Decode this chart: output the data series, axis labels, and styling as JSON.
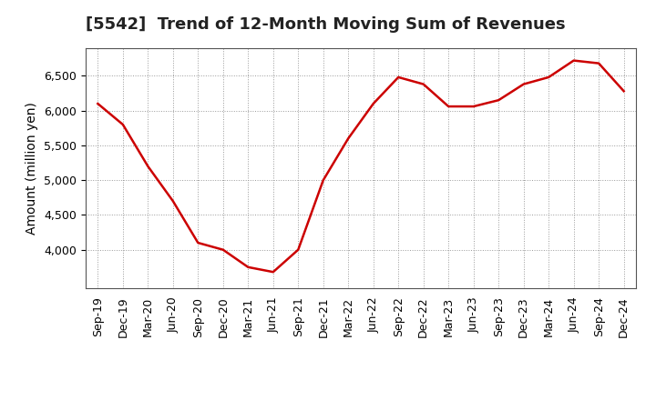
{
  "title": "[5542]  Trend of 12-Month Moving Sum of Revenues",
  "ylabel": "Amount (million yen)",
  "line_color": "#cc0000",
  "background_color": "#ffffff",
  "grid_color": "#999999",
  "x_labels": [
    "Sep-19",
    "Dec-19",
    "Mar-20",
    "Jun-20",
    "Sep-20",
    "Dec-20",
    "Mar-21",
    "Jun-21",
    "Sep-21",
    "Dec-21",
    "Mar-22",
    "Jun-22",
    "Sep-22",
    "Dec-22",
    "Mar-23",
    "Jun-23",
    "Sep-23",
    "Dec-23",
    "Mar-24",
    "Jun-24",
    "Sep-24",
    "Dec-24"
  ],
  "values": [
    6100,
    5800,
    5200,
    4700,
    4100,
    4000,
    3750,
    3680,
    4000,
    5000,
    5600,
    6100,
    6480,
    6380,
    6060,
    6060,
    6150,
    6380,
    6480,
    6720,
    6680,
    6280
  ],
  "ylim": [
    3450,
    6900
  ],
  "yticks": [
    4000,
    4500,
    5000,
    5500,
    6000,
    6500
  ],
  "title_fontsize": 13,
  "label_fontsize": 10,
  "tick_fontsize": 9,
  "line_width": 1.8
}
